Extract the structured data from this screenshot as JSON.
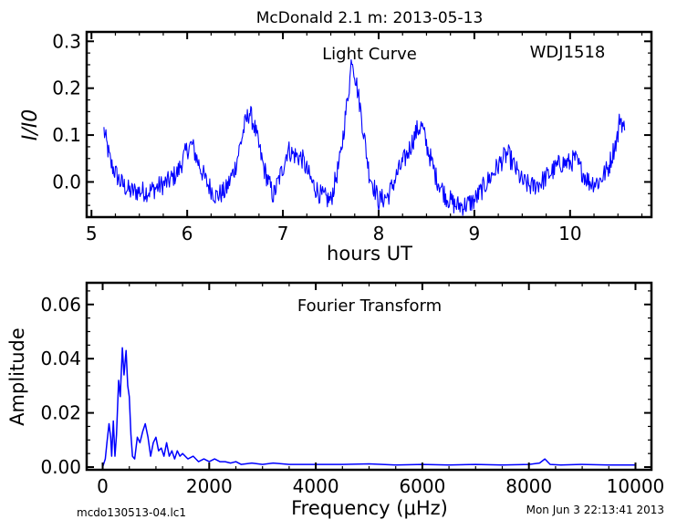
{
  "figure": {
    "title": "McDonald 2.1 m:  2013-05-13",
    "footer_left": "mcdo130513-04.lc1",
    "footer_right": "Mon Jun  3 22:13:41 2013"
  },
  "colors": {
    "series": "#0000ff",
    "axes": "#000000",
    "background": "#ffffff"
  },
  "chart_data": [
    {
      "type": "line",
      "annotations": [
        "Light Curve",
        "WDJ1518"
      ],
      "xlabel": "hours UT",
      "ylabel": "I/I0",
      "xlim": [
        4.95,
        10.85
      ],
      "ylim": [
        -0.075,
        0.32
      ],
      "xticks": [
        "5",
        "6",
        "7",
        "8",
        "9",
        "10"
      ],
      "yticks": [
        "0.0",
        "0.1",
        "0.2",
        "0.3"
      ],
      "grid": false,
      "series": [
        {
          "x": [
            5.13,
            5.2,
            5.3,
            5.4,
            5.5,
            5.6,
            5.7,
            5.8,
            5.9,
            6.0,
            6.05,
            6.1,
            6.2,
            6.3,
            6.4,
            6.5,
            6.6,
            6.65,
            6.7,
            6.8,
            6.9,
            7.0,
            7.05,
            7.1,
            7.2,
            7.3,
            7.4,
            7.5,
            7.6,
            7.7,
            7.72,
            7.8,
            7.9,
            8.0,
            8.1,
            8.2,
            8.3,
            8.4,
            8.45,
            8.5,
            8.6,
            8.7,
            8.8,
            8.9,
            9.0,
            9.1,
            9.2,
            9.3,
            9.35,
            9.4,
            9.5,
            9.6,
            9.7,
            9.8,
            9.9,
            10.0,
            10.05,
            10.1,
            10.2,
            10.3,
            10.4,
            10.5,
            10.52,
            10.57
          ],
          "y": [
            0.11,
            0.04,
            0.0,
            -0.02,
            -0.02,
            -0.02,
            -0.01,
            0.0,
            0.02,
            0.07,
            0.08,
            0.05,
            0.0,
            -0.03,
            -0.02,
            0.03,
            0.12,
            0.15,
            0.12,
            0.03,
            -0.03,
            0.03,
            0.07,
            0.06,
            0.05,
            0.0,
            -0.03,
            -0.04,
            0.05,
            0.22,
            0.27,
            0.17,
            0.02,
            -0.04,
            -0.03,
            0.02,
            0.06,
            0.11,
            0.12,
            0.08,
            0.01,
            -0.03,
            -0.05,
            -0.05,
            -0.04,
            -0.01,
            0.02,
            0.05,
            0.06,
            0.04,
            0.0,
            -0.01,
            0.0,
            0.02,
            0.04,
            0.04,
            0.05,
            0.03,
            0.0,
            0.0,
            0.03,
            0.1,
            0.14,
            0.11
          ]
        }
      ]
    },
    {
      "type": "line",
      "annotations": [
        "Fourier Transform"
      ],
      "xlabel": "Frequency (μHz)",
      "ylabel": "Amplitude",
      "xlim": [
        -300,
        10300
      ],
      "ylim": [
        -0.001,
        0.068
      ],
      "xticks": [
        "0",
        "2000",
        "4000",
        "6000",
        "8000",
        "10000"
      ],
      "yticks": [
        "0.00",
        "0.02",
        "0.04",
        "0.06"
      ],
      "grid": false,
      "series": [
        {
          "x": [
            0,
            50,
            80,
            120,
            150,
            170,
            200,
            230,
            260,
            300,
            330,
            370,
            400,
            440,
            470,
            500,
            530,
            560,
            600,
            650,
            700,
            750,
            800,
            850,
            900,
            950,
            1000,
            1050,
            1100,
            1150,
            1200,
            1250,
            1300,
            1350,
            1400,
            1450,
            1500,
            1600,
            1700,
            1800,
            1900,
            2000,
            2100,
            2200,
            2300,
            2400,
            2500,
            2600,
            2800,
            3000,
            3200,
            3500,
            4000,
            4500,
            5000,
            5500,
            6000,
            6500,
            7000,
            7500,
            8000,
            8200,
            8300,
            8400,
            8600,
            9000,
            9500,
            10000
          ],
          "y": [
            0.0,
            0.003,
            0.009,
            0.016,
            0.011,
            0.004,
            0.017,
            0.004,
            0.012,
            0.032,
            0.026,
            0.044,
            0.034,
            0.043,
            0.03,
            0.026,
            0.012,
            0.004,
            0.003,
            0.011,
            0.009,
            0.013,
            0.016,
            0.011,
            0.004,
            0.009,
            0.011,
            0.006,
            0.007,
            0.004,
            0.009,
            0.004,
            0.006,
            0.003,
            0.006,
            0.004,
            0.005,
            0.003,
            0.004,
            0.002,
            0.003,
            0.002,
            0.003,
            0.002,
            0.002,
            0.0015,
            0.002,
            0.001,
            0.0015,
            0.001,
            0.0015,
            0.001,
            0.001,
            0.001,
            0.0012,
            0.0008,
            0.001,
            0.0008,
            0.001,
            0.0008,
            0.001,
            0.0015,
            0.003,
            0.001,
            0.0008,
            0.001,
            0.0008,
            0.0008
          ]
        }
      ]
    }
  ]
}
